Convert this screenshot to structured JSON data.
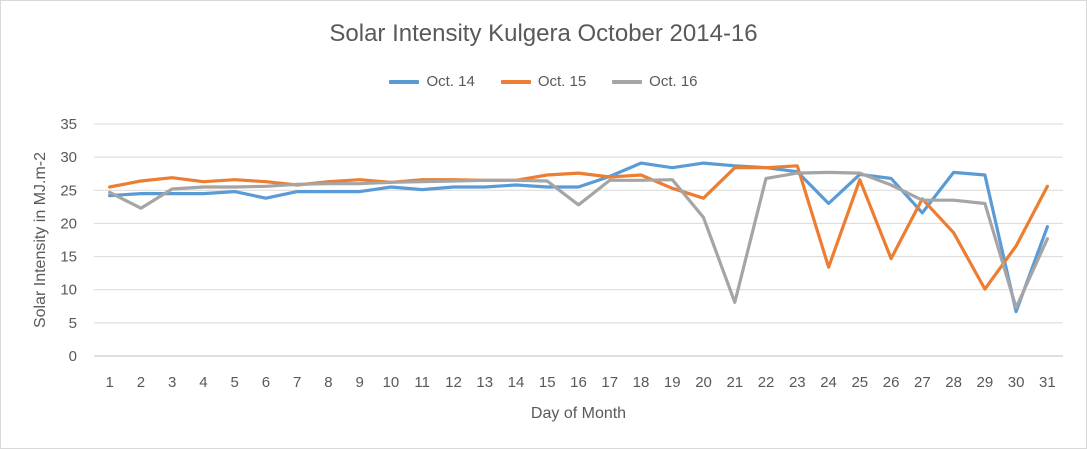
{
  "chart_data": {
    "type": "line",
    "title": "Solar Intensity Kulgera October 2014-16",
    "xlabel": "Day of Month",
    "ylabel": "Solar Intensity in MJ.m-2",
    "ylim": [
      0,
      35
    ],
    "yticks": [
      0,
      5,
      10,
      15,
      20,
      25,
      30,
      35
    ],
    "grid": true,
    "legend_position": "top",
    "categories": [
      "1",
      "2",
      "3",
      "4",
      "5",
      "6",
      "7",
      "8",
      "9",
      "10",
      "11",
      "12",
      "13",
      "14",
      "15",
      "16",
      "17",
      "18",
      "19",
      "20",
      "21",
      "22",
      "23",
      "24",
      "25",
      "26",
      "27",
      "28",
      "29",
      "30",
      "31"
    ],
    "series": [
      {
        "name": "Oct. 14",
        "color": "#5b9bd5",
        "values": [
          24.2,
          24.5,
          24.5,
          24.5,
          24.8,
          23.8,
          24.8,
          24.8,
          24.8,
          25.5,
          25.1,
          25.5,
          25.5,
          25.8,
          25.5,
          25.5,
          27.1,
          29.1,
          28.4,
          29.1,
          28.7,
          28.4,
          27.8,
          23.0,
          27.4,
          26.8,
          21.6,
          27.7,
          27.3,
          6.7,
          19.5
        ]
      },
      {
        "name": "Oct. 15",
        "color": "#ed7d31",
        "values": [
          25.5,
          26.4,
          26.9,
          26.3,
          26.6,
          26.3,
          25.8,
          26.3,
          26.6,
          26.2,
          26.6,
          26.6,
          26.5,
          26.5,
          27.3,
          27.6,
          27.0,
          27.3,
          25.3,
          23.8,
          28.4,
          28.4,
          28.7,
          13.4,
          26.6,
          14.7,
          23.7,
          18.6,
          10.1,
          16.6,
          25.6
        ]
      },
      {
        "name": "Oct. 16",
        "color": "#a5a5a5",
        "values": [
          24.7,
          22.3,
          25.2,
          25.5,
          25.5,
          25.6,
          25.9,
          26.0,
          26.0,
          26.2,
          26.3,
          26.4,
          26.5,
          26.5,
          26.4,
          22.8,
          26.5,
          26.5,
          26.6,
          20.9,
          8.1,
          26.8,
          27.6,
          27.7,
          27.6,
          25.8,
          23.5,
          23.5,
          23.0,
          7.3,
          17.7
        ]
      }
    ]
  }
}
